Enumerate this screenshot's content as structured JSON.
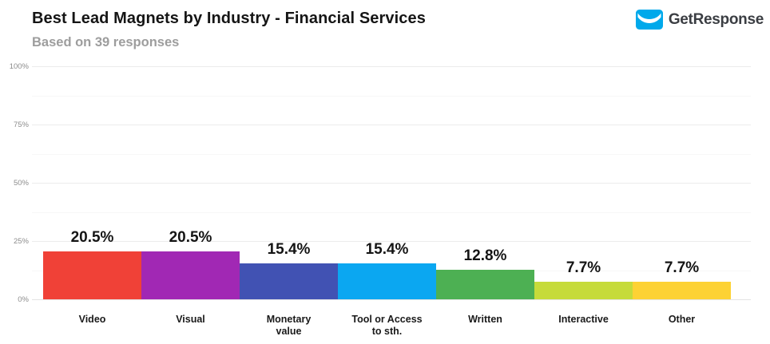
{
  "header": {
    "title": "Best Lead Magnets by Industry - Financial Services",
    "subtitle": "Based on 39 responses"
  },
  "logo": {
    "brand": "GetResponse",
    "envelope_color": "#00a9eb",
    "text_color": "#3b3e43"
  },
  "chart_data": {
    "type": "bar",
    "title": "Best Lead Magnets by Industry - Financial Services",
    "subtitle": "Based on 39 responses",
    "categories": [
      "Video",
      "Visual",
      "Monetary value",
      "Tool or Access to sth.",
      "Written",
      "Interactive",
      "Other"
    ],
    "category_lines": [
      [
        "Video"
      ],
      [
        "Visual"
      ],
      [
        "Monetary",
        "value"
      ],
      [
        "Tool or Access",
        "to sth."
      ],
      [
        "Written"
      ],
      [
        "Interactive"
      ],
      [
        "Other"
      ]
    ],
    "values": [
      20.5,
      20.5,
      15.4,
      15.4,
      12.8,
      7.7,
      7.7
    ],
    "value_labels": [
      "20.5%",
      "20.5%",
      "15.4%",
      "15.4%",
      "12.8%",
      "7.7%",
      "7.7%"
    ],
    "bar_colors": [
      "#f04137",
      "#a128b4",
      "#4152b3",
      "#0ba7f1",
      "#4db053",
      "#c6db3a",
      "#fdd234"
    ],
    "y_ticks": [
      0,
      25,
      50,
      75,
      100
    ],
    "y_tick_labels": [
      "0%",
      "25%",
      "50%",
      "75%",
      "100%"
    ],
    "minor_grid_ticks": [
      12.5,
      37.5,
      62.5,
      87.5
    ],
    "ylim": [
      0,
      100
    ],
    "grid": true,
    "legend": false,
    "xlabel": "",
    "ylabel": ""
  }
}
